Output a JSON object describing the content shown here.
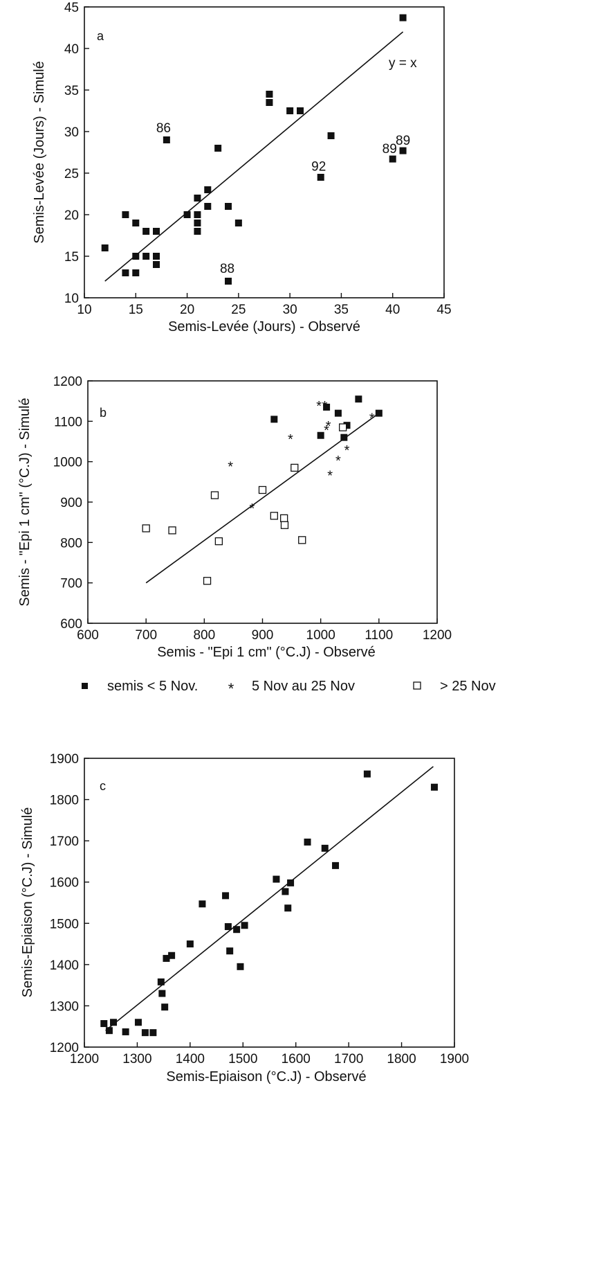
{
  "chart_data": [
    {
      "type": "scatter",
      "panel": "a",
      "xlabel": "Semis-Levée (Jours) - Observé",
      "ylabel": "Semis-Levée (Jours) - Simulé",
      "xlim": [
        10,
        45
      ],
      "ylim": [
        10,
        45
      ],
      "xticks": [
        10,
        15,
        20,
        25,
        30,
        35,
        40,
        45
      ],
      "yticks": [
        10,
        15,
        20,
        25,
        30,
        35,
        40,
        45
      ],
      "line": {
        "label": "y = x",
        "x": [
          12,
          41
        ],
        "y": [
          12,
          42
        ]
      },
      "series": [
        {
          "marker": "filled-square",
          "x": [
            12,
            14,
            14,
            15,
            15,
            15,
            16,
            16,
            17,
            17,
            17,
            18,
            20,
            21,
            21,
            21,
            21,
            22,
            22,
            23,
            24,
            24,
            25,
            28,
            28,
            30,
            31,
            33,
            34,
            40,
            41,
            41
          ],
          "y": [
            16,
            20,
            13,
            19,
            15,
            13,
            18,
            15,
            18,
            15,
            14,
            29,
            20,
            22,
            20,
            19,
            18,
            23,
            21,
            28,
            21,
            12,
            19,
            34.5,
            33.5,
            32.5,
            32.5,
            24.5,
            29.5,
            26.7,
            27.7,
            43.7
          ]
        }
      ],
      "annotations": [
        {
          "text": "86",
          "x": 17.7,
          "y": 29.9
        },
        {
          "text": "88",
          "x": 23.9,
          "y": 13.0
        },
        {
          "text": "92",
          "x": 32.8,
          "y": 25.3
        },
        {
          "text": "89",
          "x": 39.7,
          "y": 27.4
        },
        {
          "text": "89",
          "x": 41.0,
          "y": 28.4
        }
      ]
    },
    {
      "type": "scatter",
      "panel": "b",
      "xlabel": "Semis - \"Epi 1 cm\" (°C.J) - Observé",
      "ylabel": "Semis - \"Epi 1 cm\" (°C.J) - Simulé",
      "xlim": [
        600,
        1200
      ],
      "ylim": [
        600,
        1200
      ],
      "xticks": [
        600,
        700,
        800,
        900,
        1000,
        1100,
        1200
      ],
      "yticks": [
        600,
        700,
        800,
        900,
        1000,
        1100,
        1200
      ],
      "line": {
        "x": [
          700,
          1100
        ],
        "y": [
          700,
          1120
        ]
      },
      "series": [
        {
          "name": "semis < 5 Nov.",
          "marker": "filled-square",
          "x": [
            920,
            1000,
            1010,
            1030,
            1040,
            1045,
            1065,
            1100
          ],
          "y": [
            1105,
            1065,
            1135,
            1120,
            1060,
            1090,
            1155,
            1120
          ]
        },
        {
          "name": "5 Nov au 25 Nov",
          "marker": "asterisk",
          "x": [
            845,
            882,
            948,
            997,
            1007,
            1010,
            1013,
            1016,
            1030,
            1045,
            1088
          ],
          "y": [
            990,
            886,
            1058,
            1140,
            1140,
            1080,
            1090,
            968,
            1005,
            1030,
            1110
          ]
        },
        {
          "name": "> 25 Nov",
          "marker": "open-square",
          "x": [
            700,
            745,
            805,
            818,
            825,
            900,
            920,
            937,
            938,
            955,
            968,
            1038
          ],
          "y": [
            835,
            830,
            705,
            917,
            803,
            930,
            866,
            860,
            843,
            985,
            806,
            1085
          ]
        }
      ]
    },
    {
      "type": "scatter",
      "panel": "c",
      "xlabel": "Semis-Epiaison (°C.J) - Observé",
      "ylabel": "Semis-Epiaison (°C.J) - Simulé",
      "xlim": [
        1200,
        1900
      ],
      "ylim": [
        1200,
        1900
      ],
      "xticks": [
        1200,
        1300,
        1400,
        1500,
        1600,
        1700,
        1800,
        1900
      ],
      "yticks": [
        1200,
        1300,
        1400,
        1500,
        1600,
        1700,
        1800,
        1900
      ],
      "line": {
        "x": [
          1240,
          1860
        ],
        "y": [
          1240,
          1880
        ]
      },
      "series": [
        {
          "marker": "filled-square",
          "x": [
            1237,
            1247,
            1255,
            1278,
            1302,
            1315,
            1330,
            1345,
            1347,
            1352,
            1355,
            1365,
            1400,
            1423,
            1467,
            1472,
            1475,
            1488,
            1495,
            1503,
            1563,
            1580,
            1585,
            1590,
            1622,
            1655,
            1675,
            1735,
            1862
          ],
          "y": [
            1257,
            1240,
            1260,
            1237,
            1260,
            1235,
            1235,
            1358,
            1330,
            1297,
            1415,
            1422,
            1450,
            1547,
            1567,
            1492,
            1433,
            1485,
            1395,
            1495,
            1607,
            1577,
            1537,
            1598,
            1697,
            1682,
            1640,
            1862,
            1830
          ]
        }
      ]
    }
  ],
  "legend_b": [
    {
      "marker": "filled-square",
      "label": "semis < 5 Nov."
    },
    {
      "marker": "asterisk",
      "label": "5 Nov au 25 Nov"
    },
    {
      "marker": "open-square",
      "label": "> 25 Nov"
    }
  ]
}
